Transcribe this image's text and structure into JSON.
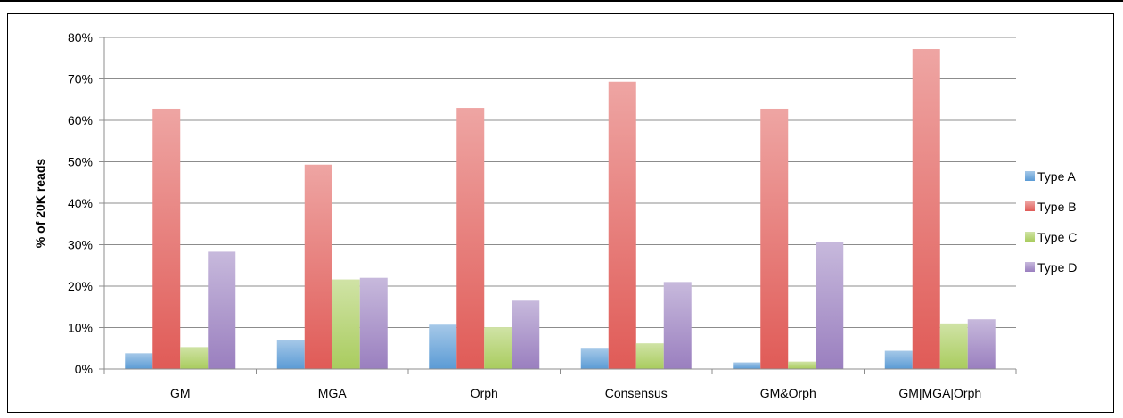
{
  "chart_data": {
    "type": "bar",
    "title": "",
    "xlabel": "",
    "ylabel": "% of 20K reads",
    "ylim": [
      0,
      80
    ],
    "yticks": [
      "0%",
      "10%",
      "20%",
      "30%",
      "40%",
      "50%",
      "60%",
      "70%",
      "80%"
    ],
    "categories": [
      "GM",
      "MGA",
      "Orph",
      "Consensus",
      "GM&Orph",
      "GM|MGA|Orph"
    ],
    "grid": true,
    "legend_position": "right",
    "series": [
      {
        "name": "Type A",
        "color": "#5b9bd5",
        "values": [
          3.8,
          7.0,
          10.7,
          4.9,
          1.6,
          4.4
        ]
      },
      {
        "name": "Type B",
        "color": "#e05b57",
        "values": [
          62.8,
          49.3,
          63.0,
          69.3,
          62.8,
          77.2
        ]
      },
      {
        "name": "Type C",
        "color": "#a9cc5e",
        "values": [
          5.3,
          21.6,
          10.1,
          6.2,
          1.8,
          11.0
        ]
      },
      {
        "name": "Type D",
        "color": "#9a7fbf",
        "values": [
          28.3,
          22.0,
          16.5,
          21.0,
          30.7,
          12.0
        ]
      }
    ]
  }
}
